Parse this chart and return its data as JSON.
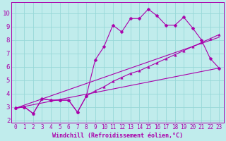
{
  "xlabel": "Windchill (Refroidissement éolien,°C)",
  "xlim": [
    -0.5,
    23.5
  ],
  "ylim": [
    1.8,
    10.8
  ],
  "background_color": "#c0ecec",
  "grid_color": "#98d8d8",
  "line_color": "#aa00aa",
  "xticks": [
    0,
    1,
    2,
    3,
    4,
    5,
    6,
    7,
    8,
    9,
    10,
    11,
    12,
    13,
    14,
    15,
    16,
    17,
    18,
    19,
    20,
    21,
    22,
    23
  ],
  "yticks": [
    2,
    3,
    4,
    5,
    6,
    7,
    8,
    9,
    10
  ],
  "line1_x": [
    0,
    1,
    2,
    3,
    4,
    5,
    6,
    7,
    8,
    9,
    10,
    11,
    12,
    13,
    14,
    15,
    16,
    17,
    18,
    19,
    20,
    21,
    22,
    23
  ],
  "line1_y": [
    2.9,
    3.0,
    2.5,
    3.6,
    3.5,
    3.5,
    3.5,
    2.6,
    3.8,
    6.5,
    7.5,
    9.1,
    8.6,
    9.6,
    9.6,
    10.3,
    9.8,
    9.1,
    9.1,
    9.7,
    8.9,
    8.0,
    6.6,
    5.9
  ],
  "line2_x": [
    0,
    1,
    2,
    3,
    4,
    5,
    6,
    7,
    8,
    9,
    10,
    11,
    12,
    13,
    14,
    15,
    16,
    17,
    18,
    19,
    20,
    21,
    22,
    23
  ],
  "line2_y": [
    2.9,
    3.0,
    2.5,
    3.6,
    3.5,
    3.5,
    3.5,
    2.6,
    3.8,
    4.2,
    4.5,
    4.9,
    5.2,
    5.5,
    5.7,
    6.0,
    6.3,
    6.6,
    6.9,
    7.2,
    7.5,
    7.8,
    8.1,
    8.4
  ],
  "line3_x": [
    0,
    23
  ],
  "line3_y": [
    2.9,
    5.9
  ],
  "line4_x": [
    0,
    23
  ],
  "line4_y": [
    2.9,
    8.2
  ],
  "font_size": 6,
  "tick_font_size": 5.5,
  "marker_size": 2.5,
  "line_width": 0.8
}
